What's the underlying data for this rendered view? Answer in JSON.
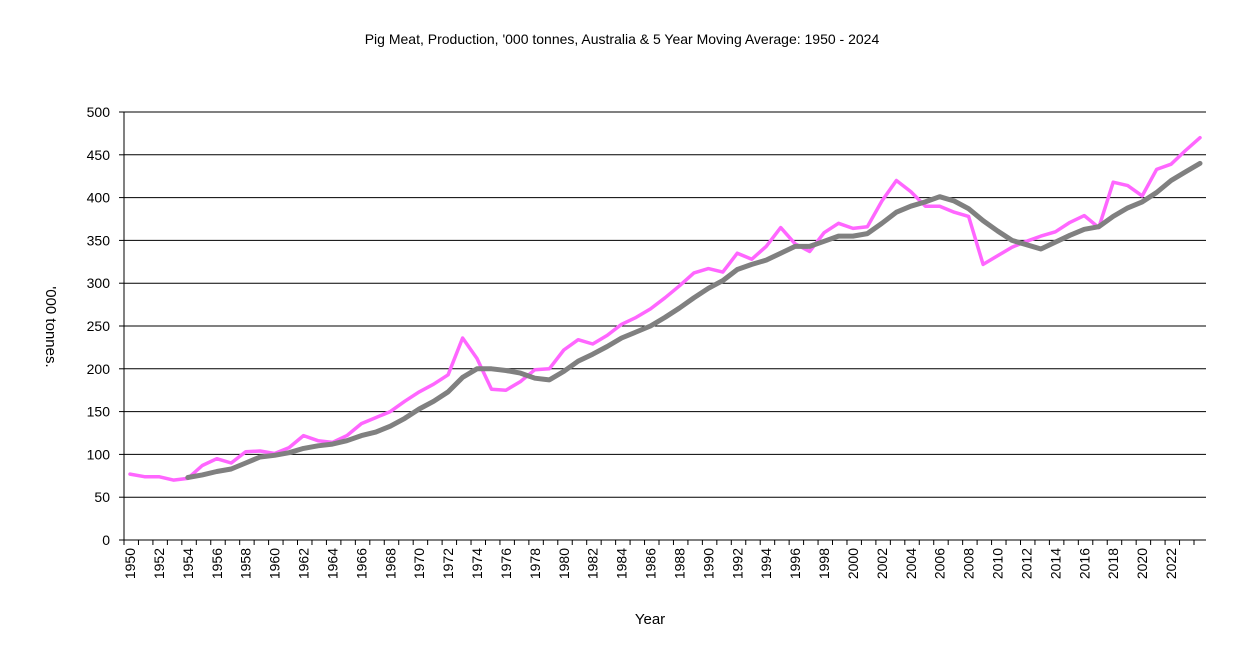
{
  "chart_data": {
    "type": "line",
    "title": "Pig Meat, Production, '000 tonnes,  Australia & 5 Year Moving Average: 1950 - 2024",
    "xlabel": "Year",
    "ylabel": "'000 tonnes.",
    "ylim": [
      0,
      500
    ],
    "y_ticks": [
      0,
      50,
      100,
      150,
      200,
      250,
      300,
      350,
      400,
      450,
      500
    ],
    "x_tick_labels": [
      "1950",
      "1952",
      "1954",
      "1956",
      "1958",
      "1960",
      "1962",
      "1964",
      "1966",
      "1968",
      "1970",
      "1972",
      "1974",
      "1976",
      "1978",
      "1980",
      "1982",
      "1984",
      "1986",
      "1988",
      "1990",
      "1992",
      "1994",
      "1996",
      "1998",
      "2000",
      "2002",
      "2004",
      "2006",
      "2008",
      "2010",
      "2012",
      "2014",
      "2016",
      "2018",
      "2020",
      "2022"
    ],
    "x": [
      1950,
      1951,
      1952,
      1953,
      1954,
      1955,
      1956,
      1957,
      1958,
      1959,
      1960,
      1961,
      1962,
      1963,
      1964,
      1965,
      1966,
      1967,
      1968,
      1969,
      1970,
      1971,
      1972,
      1973,
      1974,
      1975,
      1976,
      1977,
      1978,
      1979,
      1980,
      1981,
      1982,
      1983,
      1984,
      1985,
      1986,
      1987,
      1988,
      1989,
      1990,
      1991,
      1992,
      1993,
      1994,
      1995,
      1996,
      1997,
      1998,
      1999,
      2000,
      2001,
      2002,
      2003,
      2004,
      2005,
      2006,
      2007,
      2008,
      2009,
      2010,
      2011,
      2012,
      2013,
      2014,
      2015,
      2016,
      2017,
      2018,
      2019,
      2020,
      2021,
      2022,
      2023,
      2024
    ],
    "grid": true,
    "series": [
      {
        "name": "Production",
        "color": "#ff66ff",
        "values": [
          77,
          74,
          74,
          70,
          72,
          87,
          95,
          90,
          103,
          104,
          101,
          108,
          122,
          116,
          114,
          122,
          136,
          143,
          150,
          162,
          173,
          182,
          193,
          236,
          212,
          176,
          175,
          185,
          199,
          200,
          222,
          234,
          229,
          239,
          252,
          260,
          270,
          283,
          297,
          312,
          317,
          313,
          335,
          328,
          343,
          365,
          346,
          337,
          359,
          370,
          364,
          366,
          396,
          420,
          407,
          390,
          390,
          383,
          378,
          322,
          332,
          342,
          349,
          355,
          360,
          371,
          379,
          365,
          418,
          414,
          402,
          433,
          439,
          455,
          470
        ]
      },
      {
        "name": "5 Year Moving Average",
        "color": "#808080",
        "values": [
          null,
          null,
          null,
          null,
          73,
          76,
          80,
          83,
          90,
          97,
          99,
          102,
          107,
          110,
          112,
          116,
          122,
          126,
          133,
          142,
          153,
          162,
          173,
          190,
          200,
          200,
          198,
          195,
          189,
          187,
          197,
          209,
          217,
          226,
          236,
          243,
          250,
          260,
          271,
          283,
          294,
          303,
          316,
          322,
          327,
          335,
          343,
          343,
          349,
          355,
          355,
          358,
          370,
          383,
          390,
          395,
          401,
          396,
          387,
          373,
          361,
          350,
          345,
          340,
          348,
          356,
          363,
          366,
          378,
          388,
          395,
          406,
          420,
          430,
          440
        ]
      }
    ]
  }
}
